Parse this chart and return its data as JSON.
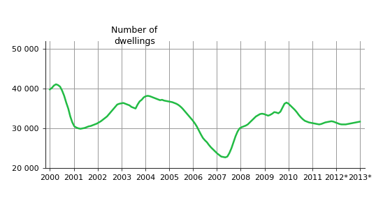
{
  "title": "Number of\ndwellings",
  "line_color": "#22bb44",
  "line_width": 1.8,
  "background_color": "#ffffff",
  "grid_color": "#999999",
  "ylim": [
    20000,
    52000
  ],
  "yticks": [
    20000,
    30000,
    40000,
    50000
  ],
  "ytick_labels": [
    "20 000",
    "30 000",
    "40 000",
    "50 000"
  ],
  "x_year_labels": [
    "2000",
    "2001",
    "2002",
    "2003",
    "2004",
    "2005",
    "2006",
    "2007",
    "2008",
    "2009",
    "2010",
    "2011",
    "2012*",
    "2013*"
  ],
  "data_y": [
    39800,
    40200,
    40800,
    41100,
    40900,
    40500,
    39500,
    38200,
    36500,
    35000,
    33000,
    31500,
    30500,
    30200,
    30000,
    29900,
    30000,
    30100,
    30300,
    30500,
    30600,
    30800,
    31000,
    31200,
    31500,
    31800,
    32200,
    32600,
    33000,
    33600,
    34200,
    34800,
    35400,
    36000,
    36200,
    36300,
    36400,
    36200,
    36000,
    35800,
    35400,
    35200,
    35000,
    36000,
    36800,
    37200,
    37800,
    38100,
    38200,
    38100,
    37900,
    37700,
    37500,
    37300,
    37100,
    37200,
    37000,
    36900,
    36800,
    36700,
    36600,
    36400,
    36200,
    35900,
    35500,
    35000,
    34400,
    33800,
    33200,
    32600,
    32000,
    31300,
    30500,
    29500,
    28500,
    27600,
    27000,
    26500,
    25800,
    25200,
    24700,
    24200,
    23700,
    23300,
    22900,
    22800,
    22700,
    22900,
    23800,
    25000,
    26500,
    28000,
    29200,
    30000,
    30300,
    30500,
    30700,
    31000,
    31500,
    32000,
    32500,
    33000,
    33300,
    33600,
    33700,
    33600,
    33400,
    33200,
    33400,
    33700,
    34100,
    34000,
    33800,
    34200,
    35200,
    36200,
    36500,
    36200,
    35700,
    35200,
    34700,
    34100,
    33400,
    32800,
    32300,
    31900,
    31700,
    31500,
    31400,
    31300,
    31200,
    31100,
    31000,
    31100,
    31300,
    31500,
    31600,
    31700,
    31800,
    31700,
    31500,
    31300,
    31100,
    31000,
    31000,
    31000,
    31100,
    31200,
    31300,
    31400,
    31500,
    31600,
    31700
  ]
}
